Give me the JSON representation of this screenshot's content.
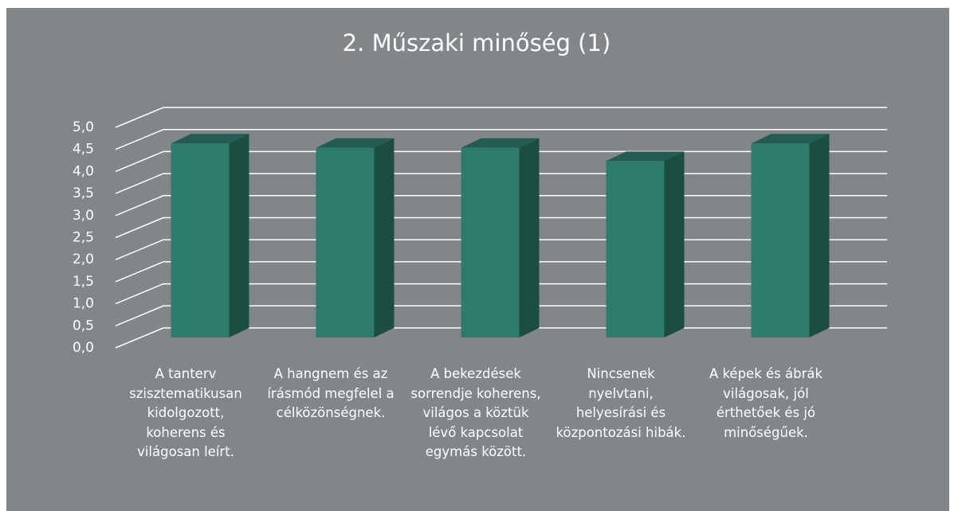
{
  "chart_data": {
    "type": "bar3d",
    "title": "2. Műszaki minőség (1)",
    "categories": [
      "A tanterv szisztematikusan kidolgozott, koherens és világosan leírt.",
      "A hangnem és az írásmód megfelel a célközönségnek.",
      "A bekezdések sorrendje koherens, világos a köztük lévő kapcsolat egymás között.",
      "Nincsenek nyelvtani, helyesírási és központozási hibák.",
      "A képek és ábrák világosak, jól érthetőek és jó minőségűek."
    ],
    "values": [
      4.4,
      4.3,
      4.3,
      4.0,
      4.4
    ],
    "color": "#2e7b6c",
    "ylim": [
      0,
      5
    ],
    "yticks": [
      {
        "value": 0,
        "label": "0,0"
      },
      {
        "value": 0.5,
        "label": "0,5"
      },
      {
        "value": 1,
        "label": "1,0"
      },
      {
        "value": 1.5,
        "label": "1,5"
      },
      {
        "value": 2,
        "label": "2,0"
      },
      {
        "value": 2.5,
        "label": "2,5"
      },
      {
        "value": 3,
        "label": "3,0"
      },
      {
        "value": 3.5,
        "label": "3,5"
      },
      {
        "value": 4,
        "label": "4,0"
      },
      {
        "value": 4.5,
        "label": "4,5"
      },
      {
        "value": 5,
        "label": "5,0"
      }
    ],
    "grid": true
  }
}
